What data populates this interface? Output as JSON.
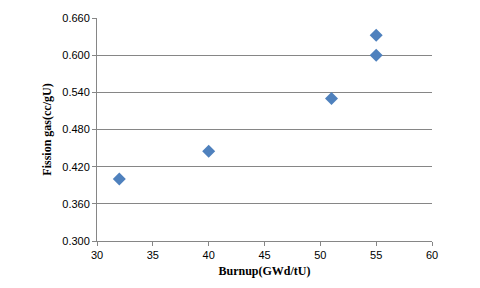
{
  "chart_data": {
    "type": "scatter",
    "x_label": "Burnup(GWd/tU)",
    "y_label": "Fission gas(cc/gU)",
    "x": [
      32,
      40,
      51,
      55,
      55
    ],
    "values": [
      0.4,
      0.445,
      0.53,
      0.6,
      0.632
    ],
    "color": "#4f81bd",
    "marker": "diamond",
    "xlim": [
      30,
      60
    ],
    "xticks": [
      30,
      35,
      40,
      45,
      50,
      55,
      60
    ],
    "ylim": [
      0.3,
      0.66
    ],
    "yticks": [
      {
        "value": 0.3,
        "label": "0.300"
      },
      {
        "value": 0.36,
        "label": "0.360"
      },
      {
        "value": 0.42,
        "label": "0.420"
      },
      {
        "value": 0.48,
        "label": "0.480"
      },
      {
        "value": 0.54,
        "label": "0.540"
      },
      {
        "value": 0.6,
        "label": "0.600"
      },
      {
        "value": 0.66,
        "label": "0.660"
      }
    ],
    "grid": true
  }
}
